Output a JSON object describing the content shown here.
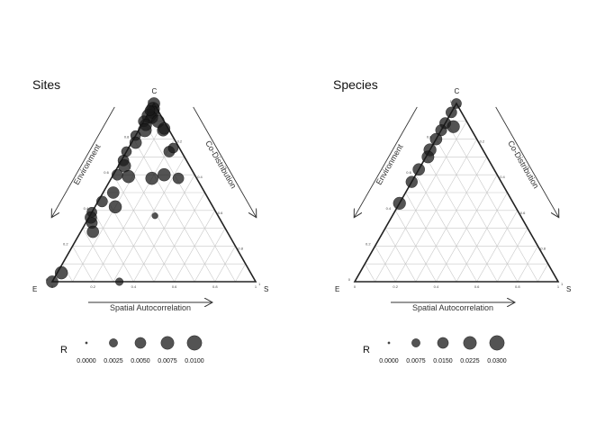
{
  "chart_data": [
    {
      "type": "scatter",
      "subtype": "ternary",
      "title": "Sites",
      "vertices": {
        "top": "C",
        "left": "E",
        "right": "S"
      },
      "axis_labels": {
        "left_side": "Environment",
        "right_side": "Co-Distribution",
        "bottom": "Spatial Autocorrelation"
      },
      "ticks": [
        "0",
        "0.2",
        "0.4",
        "0.6",
        "0.8",
        "1"
      ],
      "grid": true,
      "legend": {
        "title": "R",
        "title_superscript": "2",
        "position": "bottom",
        "values": [
          0.0,
          0.0025,
          0.005,
          0.0075,
          0.01
        ],
        "labels": [
          "0.0000",
          "0.0025",
          "0.0050",
          "0.0075",
          "0.0100"
        ],
        "max": 0.01
      },
      "points": [
        {
          "c": 1.0,
          "s": 0.0,
          "r2": 0.006
        },
        {
          "c": 0.97,
          "s": 0.01,
          "r2": 0.008
        },
        {
          "c": 0.95,
          "s": 0.02,
          "r2": 0.007
        },
        {
          "c": 0.93,
          "s": 0.01,
          "r2": 0.009
        },
        {
          "c": 0.92,
          "s": 0.03,
          "r2": 0.006
        },
        {
          "c": 0.9,
          "s": 0.0,
          "r2": 0.005
        },
        {
          "c": 0.96,
          "s": 0.0,
          "r2": 0.004
        },
        {
          "c": 0.88,
          "s": 0.02,
          "r2": 0.006
        },
        {
          "c": 0.85,
          "s": 0.03,
          "r2": 0.008
        },
        {
          "c": 0.9,
          "s": 0.07,
          "r2": 0.007
        },
        {
          "c": 0.82,
          "s": 0.0,
          "r2": 0.004
        },
        {
          "c": 0.78,
          "s": 0.02,
          "r2": 0.006
        },
        {
          "c": 0.85,
          "s": 0.12,
          "r2": 0.006
        },
        {
          "c": 0.73,
          "s": 0.0,
          "r2": 0.004
        },
        {
          "c": 0.68,
          "s": 0.01,
          "r2": 0.005
        },
        {
          "c": 0.65,
          "s": 0.03,
          "r2": 0.007
        },
        {
          "c": 0.6,
          "s": 0.02,
          "r2": 0.005
        },
        {
          "c": 0.59,
          "s": 0.08,
          "r2": 0.007
        },
        {
          "c": 0.58,
          "s": 0.2,
          "r2": 0.007
        },
        {
          "c": 0.5,
          "s": 0.05,
          "r2": 0.006
        },
        {
          "c": 0.45,
          "s": 0.02,
          "r2": 0.005
        },
        {
          "c": 0.42,
          "s": 0.1,
          "r2": 0.007
        },
        {
          "c": 0.39,
          "s": 0.0,
          "r2": 0.004
        },
        {
          "c": 0.36,
          "s": 0.01,
          "r2": 0.006
        },
        {
          "c": 0.33,
          "s": 0.03,
          "r2": 0.005
        },
        {
          "c": 0.28,
          "s": 0.06,
          "r2": 0.006
        },
        {
          "c": 0.05,
          "s": 0.02,
          "r2": 0.007
        },
        {
          "c": 0.0,
          "s": 0.0,
          "r2": 0.006
        },
        {
          "c": 0.6,
          "s": 0.25,
          "r2": 0.007
        },
        {
          "c": 0.73,
          "s": 0.21,
          "r2": 0.005
        },
        {
          "c": 0.75,
          "s": 0.22,
          "r2": 0.004
        },
        {
          "c": 0.86,
          "s": 0.12,
          "r2": 0.006
        },
        {
          "c": 0.58,
          "s": 0.33,
          "r2": 0.005
        },
        {
          "c": 0.37,
          "s": 0.32,
          "r2": 0.001
        },
        {
          "c": 0.0,
          "s": 0.33,
          "r2": 0.002
        }
      ]
    },
    {
      "type": "scatter",
      "subtype": "ternary",
      "title": "Species",
      "vertices": {
        "top": "C",
        "left": "E",
        "right": "S"
      },
      "axis_labels": {
        "left_side": "Environment",
        "right_side": "Co-Distribution",
        "bottom": "Spatial Autocorrelation"
      },
      "ticks": [
        "0",
        "0.2",
        "0.4",
        "0.6",
        "0.8",
        "1"
      ],
      "grid": true,
      "legend": {
        "title": "R",
        "title_superscript": "2",
        "position": "bottom",
        "values": [
          0.0,
          0.0075,
          0.015,
          0.0225,
          0.03
        ],
        "labels": [
          "0.0000",
          "0.0075",
          "0.0150",
          "0.0225",
          "0.0300"
        ],
        "max": 0.03
      },
      "points": [
        {
          "c": 1.0,
          "s": 0.0,
          "r2": 0.012
        },
        {
          "c": 0.95,
          "s": 0.0,
          "r2": 0.015
        },
        {
          "c": 0.89,
          "s": 0.0,
          "r2": 0.016
        },
        {
          "c": 0.85,
          "s": 0.0,
          "r2": 0.016
        },
        {
          "c": 0.87,
          "s": 0.05,
          "r2": 0.02
        },
        {
          "c": 0.8,
          "s": 0.0,
          "r2": 0.018
        },
        {
          "c": 0.74,
          "s": 0.0,
          "r2": 0.02
        },
        {
          "c": 0.7,
          "s": 0.01,
          "r2": 0.019
        },
        {
          "c": 0.63,
          "s": 0.0,
          "r2": 0.018
        },
        {
          "c": 0.56,
          "s": 0.0,
          "r2": 0.017
        },
        {
          "c": 0.44,
          "s": 0.0,
          "r2": 0.02
        }
      ]
    }
  ]
}
